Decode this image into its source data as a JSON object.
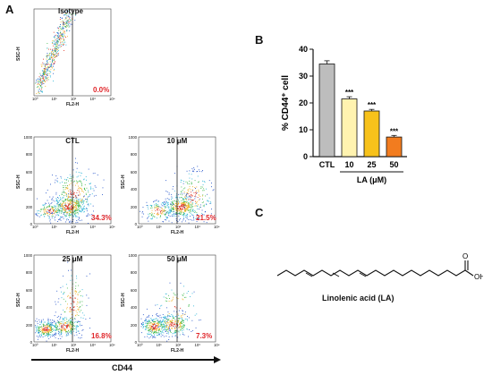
{
  "figure": {
    "panels": {
      "a_label": "A",
      "b_label": "B",
      "c_label": "C"
    },
    "flow": {
      "x_axis_label": "FL2-H",
      "y_axis_label": "SSC-H",
      "y_ticks": [
        "1000",
        "800",
        "600",
        "400",
        "200",
        "0"
      ],
      "x_ticks": [
        "10⁰",
        "10¹",
        "10²",
        "10³",
        "10⁴"
      ],
      "marker_label": "CD44",
      "plots": [
        {
          "title": "Isotype",
          "percent": "0.0%",
          "show_y_ticks": false
        },
        {
          "title": "CTL",
          "percent": "34.3%",
          "show_y_ticks": true
        },
        {
          "title": "10 μM",
          "percent": "21.5%",
          "show_y_ticks": true
        },
        {
          "title": "25 μM",
          "percent": "16.8%",
          "show_y_ticks": true
        },
        {
          "title": "50 μM",
          "percent": "7.3%",
          "show_y_ticks": true
        }
      ]
    },
    "chart_data": {
      "type": "bar",
      "categories": [
        "CTL",
        "10",
        "25",
        "50"
      ],
      "values": [
        34.5,
        21.5,
        17.0,
        7.3
      ],
      "errors": [
        1.2,
        0.8,
        0.6,
        0.6
      ],
      "significance": [
        "",
        "***",
        "***",
        "***"
      ],
      "ylabel": "% CD44⁺ cell",
      "xlabel": "LA (μM)",
      "ylim": [
        0,
        40
      ],
      "yticks": [
        0,
        10,
        20,
        30,
        40
      ],
      "colors": [
        "#bdbdbd",
        "#fff3b0",
        "#f7c21b",
        "#f27c1f"
      ]
    },
    "molecule": {
      "name": "Linolenic acid (LA)",
      "oxygen": "O",
      "hydroxyl": "OH"
    }
  }
}
